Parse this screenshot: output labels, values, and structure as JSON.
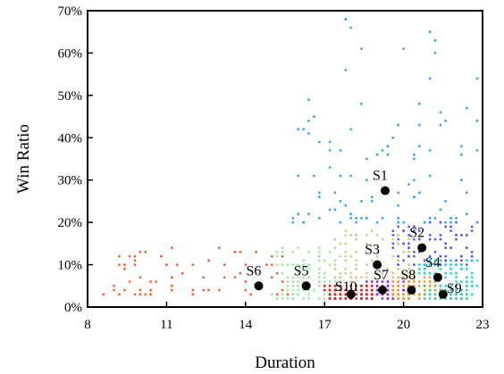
{
  "chart_data": {
    "type": "scatter",
    "xlabel": "Duration",
    "ylabel": "Win Ratio",
    "xlim": [
      8,
      23
    ],
    "ylim": [
      0,
      70
    ],
    "x_ticks": [
      8,
      11,
      14,
      17,
      20,
      23
    ],
    "x_tick_labels": [
      "8",
      "11",
      "14",
      "17",
      "20",
      "23"
    ],
    "y_ticks": [
      0,
      10,
      20,
      30,
      40,
      50,
      60,
      70
    ],
    "y_tick_labels": [
      "0%",
      "10%",
      "20%",
      "30%",
      "40%",
      "50%",
      "60%",
      "70%"
    ],
    "grid": false,
    "legend": "none",
    "clusters": [
      {
        "name": "S1",
        "color": "#3ba3e8",
        "center": [
          19.3,
          27.5
        ],
        "x_range": [
          15.7,
          23.0
        ],
        "y_range": [
          20.0,
          69.0
        ],
        "count": 110,
        "seed": 11
      },
      {
        "name": "S2",
        "color": "#5a5be6",
        "center": [
          20.7,
          14.0
        ],
        "x_range": [
          19.6,
          22.7
        ],
        "y_range": [
          10.0,
          20.0
        ],
        "count": 100,
        "seed": 22
      },
      {
        "name": "S3",
        "color": "#d7c98a",
        "center": [
          19.0,
          10.0
        ],
        "x_range": [
          17.3,
          20.5
        ],
        "y_range": [
          6.0,
          18.5
        ],
        "count": 80,
        "seed": 33
      },
      {
        "name": "S4",
        "color": "#2ad3d3",
        "center": [
          21.3,
          7.0
        ],
        "x_range": [
          20.4,
          22.8
        ],
        "y_range": [
          3.0,
          11.5
        ],
        "count": 110,
        "seed": 44
      },
      {
        "name": "S5",
        "color": "#a3e8a3",
        "center": [
          16.3,
          5.0
        ],
        "x_range": [
          15.0,
          17.6
        ],
        "y_range": [
          2.0,
          14.0
        ],
        "count": 110,
        "seed": 55
      },
      {
        "name": "S6",
        "color": "#e8663a",
        "center": [
          14.5,
          5.0
        ],
        "x_range": [
          8.5,
          15.7
        ],
        "y_range": [
          2.5,
          14.0
        ],
        "count": 70,
        "seed": 66
      },
      {
        "name": "S7",
        "color": "#9a2be0",
        "center": [
          19.2,
          4.0
        ],
        "x_range": [
          18.5,
          20.3
        ],
        "y_range": [
          2.0,
          6.0
        ],
        "count": 110,
        "seed": 77
      },
      {
        "name": "S8",
        "color": "#f0a030",
        "center": [
          20.3,
          4.0
        ],
        "x_range": [
          19.6,
          21.3
        ],
        "y_range": [
          2.0,
          7.5
        ],
        "count": 90,
        "seed": 88
      },
      {
        "name": "S9",
        "color": "#40c8a0",
        "center": [
          21.5,
          3.0
        ],
        "x_range": [
          20.8,
          22.5
        ],
        "y_range": [
          1.8,
          5.0
        ],
        "count": 70,
        "seed": 99
      },
      {
        "name": "S10",
        "color": "#e82020",
        "center": [
          18.0,
          3.0
        ],
        "x_range": [
          17.0,
          18.9
        ],
        "y_range": [
          1.8,
          5.0
        ],
        "count": 110,
        "seed": 101
      }
    ]
  }
}
